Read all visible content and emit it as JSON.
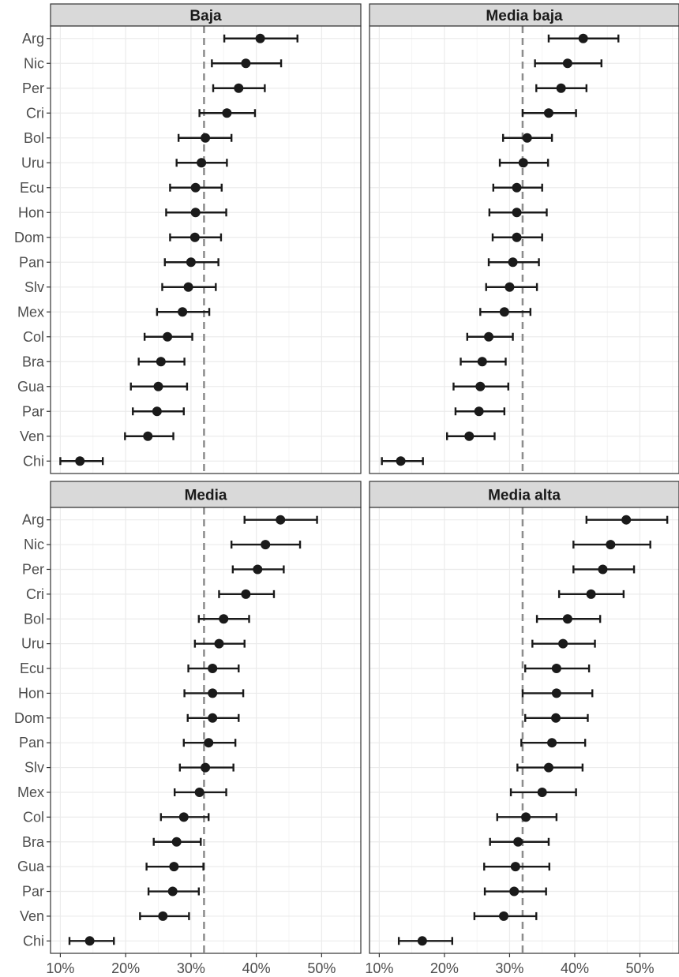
{
  "chart_data": {
    "type": "dot-errorbar",
    "layout": "facet-grid-2x2",
    "title": "",
    "xlabel": "",
    "ylabel": "",
    "xlim": [
      0.085,
      0.56
    ],
    "x_ticks": [
      0.1,
      0.2,
      0.3,
      0.4,
      0.5
    ],
    "x_tick_labels": [
      "10%",
      "20%",
      "30%",
      "40%",
      "50%"
    ],
    "reference_line": 0.32,
    "grid": true,
    "categories": [
      "Arg",
      "Nic",
      "Per",
      "Cri",
      "Bol",
      "Uru",
      "Ecu",
      "Hon",
      "Dom",
      "Pan",
      "Slv",
      "Mex",
      "Col",
      "Bra",
      "Gua",
      "Par",
      "Ven",
      "Chi"
    ],
    "colors": {
      "point": "#1a1a1a",
      "reference": "#8c8c8c",
      "strip": "#d9d9d9",
      "grid": "#ebebeb"
    },
    "facets": [
      {
        "name": "Baja",
        "points": [
          {
            "cat": "Arg",
            "est": 0.406,
            "lo": 0.351,
            "hi": 0.463
          },
          {
            "cat": "Nic",
            "est": 0.384,
            "lo": 0.332,
            "hi": 0.438
          },
          {
            "cat": "Per",
            "est": 0.373,
            "lo": 0.334,
            "hi": 0.413
          },
          {
            "cat": "Cri",
            "est": 0.355,
            "lo": 0.313,
            "hi": 0.398
          },
          {
            "cat": "Bol",
            "est": 0.322,
            "lo": 0.281,
            "hi": 0.362
          },
          {
            "cat": "Uru",
            "est": 0.316,
            "lo": 0.278,
            "hi": 0.355
          },
          {
            "cat": "Ecu",
            "est": 0.307,
            "lo": 0.268,
            "hi": 0.347
          },
          {
            "cat": "Hon",
            "est": 0.307,
            "lo": 0.262,
            "hi": 0.354
          },
          {
            "cat": "Dom",
            "est": 0.306,
            "lo": 0.268,
            "hi": 0.346
          },
          {
            "cat": "Pan",
            "est": 0.3,
            "lo": 0.26,
            "hi": 0.342
          },
          {
            "cat": "Slv",
            "est": 0.296,
            "lo": 0.256,
            "hi": 0.338
          },
          {
            "cat": "Mex",
            "est": 0.287,
            "lo": 0.248,
            "hi": 0.328
          },
          {
            "cat": "Col",
            "est": 0.264,
            "lo": 0.229,
            "hi": 0.302
          },
          {
            "cat": "Bra",
            "est": 0.254,
            "lo": 0.22,
            "hi": 0.29
          },
          {
            "cat": "Gua",
            "est": 0.25,
            "lo": 0.208,
            "hi": 0.294
          },
          {
            "cat": "Par",
            "est": 0.248,
            "lo": 0.211,
            "hi": 0.289
          },
          {
            "cat": "Ven",
            "est": 0.234,
            "lo": 0.199,
            "hi": 0.273
          },
          {
            "cat": "Chi",
            "est": 0.13,
            "lo": 0.1,
            "hi": 0.165
          }
        ]
      },
      {
        "name": "Media baja",
        "points": [
          {
            "cat": "Arg",
            "est": 0.413,
            "lo": 0.36,
            "hi": 0.467
          },
          {
            "cat": "Nic",
            "est": 0.389,
            "lo": 0.339,
            "hi": 0.441
          },
          {
            "cat": "Per",
            "est": 0.379,
            "lo": 0.341,
            "hi": 0.418
          },
          {
            "cat": "Cri",
            "est": 0.36,
            "lo": 0.32,
            "hi": 0.402
          },
          {
            "cat": "Bol",
            "est": 0.327,
            "lo": 0.29,
            "hi": 0.365
          },
          {
            "cat": "Uru",
            "est": 0.321,
            "lo": 0.285,
            "hi": 0.359
          },
          {
            "cat": "Ecu",
            "est": 0.311,
            "lo": 0.275,
            "hi": 0.35
          },
          {
            "cat": "Hon",
            "est": 0.311,
            "lo": 0.269,
            "hi": 0.357
          },
          {
            "cat": "Dom",
            "est": 0.311,
            "lo": 0.274,
            "hi": 0.35
          },
          {
            "cat": "Pan",
            "est": 0.305,
            "lo": 0.268,
            "hi": 0.345
          },
          {
            "cat": "Slv",
            "est": 0.3,
            "lo": 0.264,
            "hi": 0.342
          },
          {
            "cat": "Mex",
            "est": 0.292,
            "lo": 0.255,
            "hi": 0.332
          },
          {
            "cat": "Col",
            "est": 0.268,
            "lo": 0.235,
            "hi": 0.305
          },
          {
            "cat": "Bra",
            "est": 0.258,
            "lo": 0.225,
            "hi": 0.294
          },
          {
            "cat": "Gua",
            "est": 0.255,
            "lo": 0.214,
            "hi": 0.298
          },
          {
            "cat": "Par",
            "est": 0.253,
            "lo": 0.217,
            "hi": 0.292
          },
          {
            "cat": "Ven",
            "est": 0.238,
            "lo": 0.204,
            "hi": 0.277
          },
          {
            "cat": "Chi",
            "est": 0.133,
            "lo": 0.104,
            "hi": 0.167
          }
        ]
      },
      {
        "name": "Media",
        "points": [
          {
            "cat": "Arg",
            "est": 0.437,
            "lo": 0.382,
            "hi": 0.493
          },
          {
            "cat": "Nic",
            "est": 0.414,
            "lo": 0.362,
            "hi": 0.467
          },
          {
            "cat": "Per",
            "est": 0.402,
            "lo": 0.364,
            "hi": 0.442
          },
          {
            "cat": "Cri",
            "est": 0.384,
            "lo": 0.343,
            "hi": 0.427
          },
          {
            "cat": "Bol",
            "est": 0.35,
            "lo": 0.312,
            "hi": 0.389
          },
          {
            "cat": "Uru",
            "est": 0.343,
            "lo": 0.306,
            "hi": 0.382
          },
          {
            "cat": "Ecu",
            "est": 0.333,
            "lo": 0.296,
            "hi": 0.373
          },
          {
            "cat": "Hon",
            "est": 0.333,
            "lo": 0.29,
            "hi": 0.38
          },
          {
            "cat": "Dom",
            "est": 0.333,
            "lo": 0.295,
            "hi": 0.373
          },
          {
            "cat": "Pan",
            "est": 0.327,
            "lo": 0.289,
            "hi": 0.368
          },
          {
            "cat": "Slv",
            "est": 0.322,
            "lo": 0.283,
            "hi": 0.365
          },
          {
            "cat": "Mex",
            "est": 0.313,
            "lo": 0.275,
            "hi": 0.354
          },
          {
            "cat": "Col",
            "est": 0.289,
            "lo": 0.254,
            "hi": 0.327
          },
          {
            "cat": "Bra",
            "est": 0.278,
            "lo": 0.243,
            "hi": 0.315
          },
          {
            "cat": "Gua",
            "est": 0.274,
            "lo": 0.232,
            "hi": 0.319
          },
          {
            "cat": "Par",
            "est": 0.272,
            "lo": 0.235,
            "hi": 0.312
          },
          {
            "cat": "Ven",
            "est": 0.257,
            "lo": 0.222,
            "hi": 0.297
          },
          {
            "cat": "Chi",
            "est": 0.145,
            "lo": 0.114,
            "hi": 0.182
          }
        ]
      },
      {
        "name": "Media alta",
        "points": [
          {
            "cat": "Arg",
            "est": 0.479,
            "lo": 0.418,
            "hi": 0.542
          },
          {
            "cat": "Nic",
            "est": 0.455,
            "lo": 0.398,
            "hi": 0.516
          },
          {
            "cat": "Per",
            "est": 0.443,
            "lo": 0.398,
            "hi": 0.491
          },
          {
            "cat": "Cri",
            "est": 0.425,
            "lo": 0.376,
            "hi": 0.475
          },
          {
            "cat": "Bol",
            "est": 0.389,
            "lo": 0.342,
            "hi": 0.439
          },
          {
            "cat": "Uru",
            "est": 0.382,
            "lo": 0.335,
            "hi": 0.431
          },
          {
            "cat": "Ecu",
            "est": 0.372,
            "lo": 0.324,
            "hi": 0.422
          },
          {
            "cat": "Hon",
            "est": 0.372,
            "lo": 0.32,
            "hi": 0.427
          },
          {
            "cat": "Dom",
            "est": 0.371,
            "lo": 0.324,
            "hi": 0.42
          },
          {
            "cat": "Pan",
            "est": 0.365,
            "lo": 0.318,
            "hi": 0.416
          },
          {
            "cat": "Slv",
            "est": 0.36,
            "lo": 0.312,
            "hi": 0.412
          },
          {
            "cat": "Mex",
            "est": 0.35,
            "lo": 0.302,
            "hi": 0.402
          },
          {
            "cat": "Col",
            "est": 0.325,
            "lo": 0.281,
            "hi": 0.372
          },
          {
            "cat": "Bra",
            "est": 0.313,
            "lo": 0.27,
            "hi": 0.36
          },
          {
            "cat": "Gua",
            "est": 0.309,
            "lo": 0.261,
            "hi": 0.361
          },
          {
            "cat": "Par",
            "est": 0.307,
            "lo": 0.262,
            "hi": 0.356
          },
          {
            "cat": "Ven",
            "est": 0.291,
            "lo": 0.246,
            "hi": 0.341
          },
          {
            "cat": "Chi",
            "est": 0.166,
            "lo": 0.13,
            "hi": 0.212
          }
        ]
      }
    ]
  }
}
